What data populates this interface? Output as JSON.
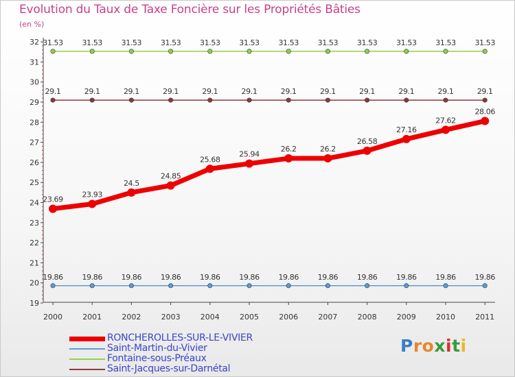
{
  "title": "Evolution du Taux de Taxe Foncière sur les Propriétés Bâties",
  "subtitle": "(en %)",
  "colors": {
    "title": "#c8408a",
    "axis": "#444444",
    "tick_minor": "#d04040",
    "legend_text": "#3a44c8"
  },
  "chart_data": {
    "type": "line",
    "title": "Evolution du Taux de Taxe Foncière sur les Propriétés Bâties",
    "ylabel": "(en %)",
    "xlabel": "",
    "ylim": [
      19,
      32
    ],
    "yticks": [
      "19",
      "20",
      "21",
      "22",
      "23",
      "24",
      "25",
      "26",
      "27",
      "28",
      "29",
      "30",
      "31",
      "32"
    ],
    "categories": [
      "2000",
      "2001",
      "2002",
      "2003",
      "2004",
      "2005",
      "2006",
      "2007",
      "2008",
      "2009",
      "2010",
      "2011"
    ],
    "series": [
      {
        "name": "RONCHEROLLES-SUR-LE-VIVIER",
        "color": "#ee0000",
        "emphasis": true,
        "values": [
          23.69,
          23.93,
          24.5,
          24.85,
          25.68,
          25.94,
          26.2,
          26.2,
          26.58,
          27.16,
          27.62,
          28.06
        ],
        "labels": [
          "23.69",
          "23.93",
          "24.5",
          "24.85",
          "25.68",
          "25.94",
          "26.2",
          "26.2",
          "26.58",
          "27.16",
          "27.62",
          "28.06"
        ]
      },
      {
        "name": "Saint-Martin-du-Vivier",
        "color": "#5b9bd5",
        "emphasis": false,
        "values": [
          19.86,
          19.86,
          19.86,
          19.86,
          19.86,
          19.86,
          19.86,
          19.86,
          19.86,
          19.86,
          19.86,
          19.86
        ],
        "labels": [
          "19.86",
          "19.86",
          "19.86",
          "19.86",
          "19.86",
          "19.86",
          "19.86",
          "19.86",
          "19.86",
          "19.86",
          "19.86",
          "19.86"
        ]
      },
      {
        "name": "Fontaine-sous-Préaux",
        "color": "#8fd14f",
        "emphasis": false,
        "values": [
          31.53,
          31.53,
          31.53,
          31.53,
          31.53,
          31.53,
          31.53,
          31.53,
          31.53,
          31.53,
          31.53,
          31.53
        ],
        "labels": [
          "31.53",
          "31.53",
          "31.53",
          "31.53",
          "31.53",
          "31.53",
          "31.53",
          "31.53",
          "31.53",
          "31.53",
          "31.53",
          "31.53"
        ]
      },
      {
        "name": "Saint-Jacques-sur-Darnétal",
        "color": "#8b3a3a",
        "emphasis": false,
        "values": [
          29.1,
          29.1,
          29.1,
          29.1,
          29.1,
          29.1,
          29.1,
          29.1,
          29.1,
          29.1,
          29.1,
          29.1
        ],
        "labels": [
          "29.1",
          "29.1",
          "29.1",
          "29.1",
          "29.1",
          "29.1",
          "29.1",
          "29.1",
          "29.1",
          "29.1",
          "29.1",
          "29.1"
        ]
      }
    ]
  },
  "logo": {
    "text": "Proxiti",
    "letter_colors": [
      "#3a7ec8",
      "#e8862a",
      "#e8862a",
      "#3a9a3a",
      "#d83030",
      "#3a9a3a",
      "#e8b82a"
    ]
  }
}
